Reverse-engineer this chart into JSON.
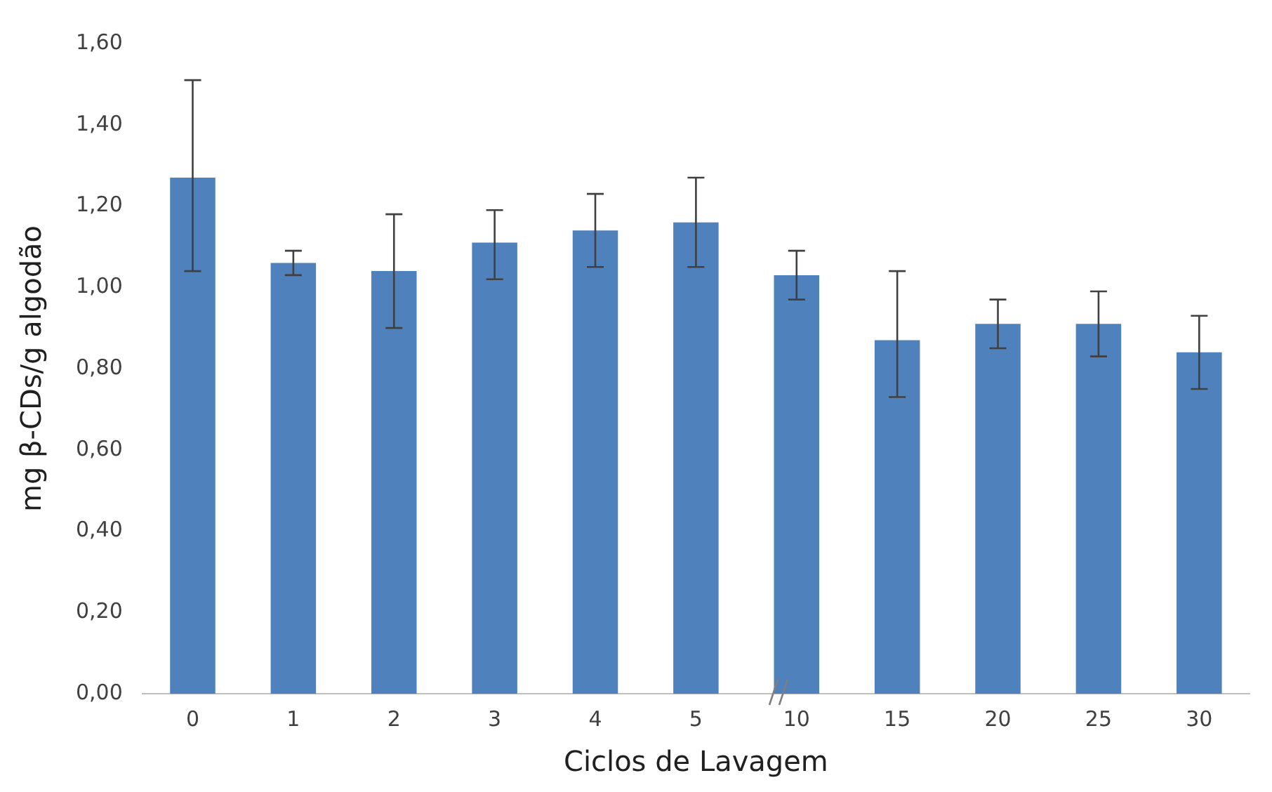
{
  "chart_data": {
    "type": "bar",
    "xlabel": "Ciclos de Lavagem",
    "ylabel": "mg β-CDs/g algodão",
    "categories": [
      "0",
      "1",
      "2",
      "3",
      "4",
      "5",
      "10",
      "15",
      "20",
      "25",
      "30"
    ],
    "values": [
      1.27,
      1.06,
      1.04,
      1.11,
      1.14,
      1.16,
      1.03,
      0.87,
      0.91,
      0.91,
      0.84
    ],
    "errors": [
      [
        1.04,
        1.51
      ],
      [
        1.03,
        1.09
      ],
      [
        0.9,
        1.18
      ],
      [
        1.02,
        1.19
      ],
      [
        1.05,
        1.23
      ],
      [
        1.05,
        1.27
      ],
      [
        0.97,
        1.09
      ],
      [
        0.73,
        1.04
      ],
      [
        0.85,
        0.97
      ],
      [
        0.83,
        0.99
      ],
      [
        0.75,
        0.93
      ]
    ],
    "color": "#4f81bd",
    "ylim": [
      0,
      1.6
    ],
    "yticks": [
      {
        "value": 0,
        "label": "0,00"
      },
      {
        "value": 0.2,
        "label": "0,20"
      },
      {
        "value": 0.4,
        "label": "0,40"
      },
      {
        "value": 0.6,
        "label": "0,60"
      },
      {
        "value": 0.8,
        "label": "0,80"
      },
      {
        "value": 1.0,
        "label": "1,00"
      },
      {
        "value": 1.2,
        "label": "1,20"
      },
      {
        "value": 1.4,
        "label": "1,40"
      },
      {
        "value": 1.6,
        "label": "1,60"
      }
    ],
    "grid": false,
    "legend": false
  }
}
